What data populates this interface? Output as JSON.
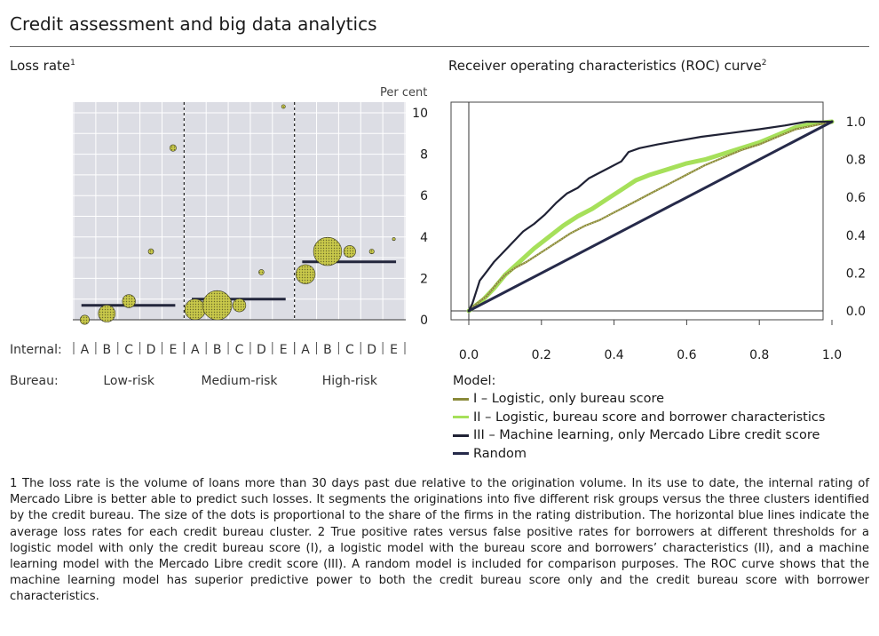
{
  "title": "Credit assessment and big data analytics",
  "colors": {
    "plot_background": "#dcdde4",
    "dots": "#c8c84a",
    "avg_line": "#23263c",
    "model_I": "#8a8a3a",
    "model_II": "#a6e05a",
    "model_III": "#202235",
    "random": "#262a4a"
  },
  "left_panel": {
    "title": "Loss rate",
    "title_note": "1",
    "unit": "Per cent",
    "internal_label": "Internal:",
    "bureau_label": "Bureau:"
  },
  "right_panel": {
    "title": "Receiver operating characteristics (ROC) curve",
    "title_note": "2"
  },
  "legend": {
    "title": "Model:",
    "items": [
      {
        "label": "I – Logistic, only bureau score",
        "color": "#8a8a3a"
      },
      {
        "label": "II – Logistic, bureau score and borrower characteristics",
        "color": "#a6e05a"
      },
      {
        "label": "III – Machine learning, only Mercado Libre credit score",
        "color": "#202235"
      },
      {
        "label": "Random",
        "color": "#262a4a"
      }
    ]
  },
  "chart_data": [
    {
      "type": "scatter",
      "title": "Loss rate",
      "ylabel": "Per cent",
      "ylim": [
        0,
        10
      ],
      "yticks": [
        0,
        2,
        4,
        6,
        8,
        10
      ],
      "grid": true,
      "groups": [
        {
          "bureau": "Low-risk",
          "average": 0.7,
          "points": [
            {
              "internal": "A",
              "value": 0.0,
              "share": 0.3
            },
            {
              "internal": "B",
              "value": 0.3,
              "share": 1.0
            },
            {
              "internal": "C",
              "value": 0.9,
              "share": 0.6
            },
            {
              "internal": "D",
              "value": 3.3,
              "share": 0.1
            },
            {
              "internal": "E",
              "value": 8.3,
              "share": 0.15
            }
          ]
        },
        {
          "bureau": "Medium-risk",
          "average": 1.0,
          "points": [
            {
              "internal": "A",
              "value": 0.5,
              "share": 1.5
            },
            {
              "internal": "B",
              "value": 0.7,
              "share": 3.0
            },
            {
              "internal": "C",
              "value": 0.7,
              "share": 0.6
            },
            {
              "internal": "D",
              "value": 2.3,
              "share": 0.1
            },
            {
              "internal": "E",
              "value": 10.3,
              "share": 0.05
            }
          ]
        },
        {
          "bureau": "High-risk",
          "average": 2.8,
          "points": [
            {
              "internal": "A",
              "value": 2.2,
              "share": 1.3
            },
            {
              "internal": "B",
              "value": 3.3,
              "share": 2.8
            },
            {
              "internal": "C",
              "value": 3.3,
              "share": 0.5
            },
            {
              "internal": "D",
              "value": 3.3,
              "share": 0.08
            },
            {
              "internal": "E",
              "value": 3.9,
              "share": 0.03
            }
          ]
        }
      ]
    },
    {
      "type": "line",
      "title": "Receiver operating characteristics (ROC) curve",
      "xlim": [
        0,
        1
      ],
      "ylim": [
        0,
        1
      ],
      "xticks": [
        0.0,
        0.2,
        0.4,
        0.6,
        0.8,
        1.0
      ],
      "yticks": [
        0.0,
        0.2,
        0.4,
        0.6,
        0.8,
        1.0
      ],
      "grid": false,
      "series": [
        {
          "name": "I – Logistic, only bureau score",
          "points": [
            [
              0,
              0
            ],
            [
              0.01,
              0.02
            ],
            [
              0.03,
              0.05
            ],
            [
              0.05,
              0.08
            ],
            [
              0.08,
              0.15
            ],
            [
              0.1,
              0.19
            ],
            [
              0.13,
              0.23
            ],
            [
              0.16,
              0.26
            ],
            [
              0.2,
              0.31
            ],
            [
              0.24,
              0.36
            ],
            [
              0.28,
              0.41
            ],
            [
              0.32,
              0.45
            ],
            [
              0.36,
              0.48
            ],
            [
              0.4,
              0.52
            ],
            [
              0.45,
              0.57
            ],
            [
              0.5,
              0.62
            ],
            [
              0.55,
              0.67
            ],
            [
              0.6,
              0.72
            ],
            [
              0.65,
              0.77
            ],
            [
              0.7,
              0.81
            ],
            [
              0.75,
              0.85
            ],
            [
              0.8,
              0.88
            ],
            [
              0.85,
              0.92
            ],
            [
              0.9,
              0.96
            ],
            [
              0.95,
              0.98
            ],
            [
              1,
              1
            ]
          ]
        },
        {
          "name": "II – Logistic, bureau score and borrower characteristics",
          "points": [
            [
              0,
              0
            ],
            [
              0.02,
              0.03
            ],
            [
              0.04,
              0.06
            ],
            [
              0.07,
              0.12
            ],
            [
              0.1,
              0.19
            ],
            [
              0.14,
              0.26
            ],
            [
              0.18,
              0.33
            ],
            [
              0.22,
              0.39
            ],
            [
              0.26,
              0.45
            ],
            [
              0.3,
              0.5
            ],
            [
              0.34,
              0.54
            ],
            [
              0.38,
              0.59
            ],
            [
              0.42,
              0.64
            ],
            [
              0.46,
              0.69
            ],
            [
              0.5,
              0.72
            ],
            [
              0.55,
              0.75
            ],
            [
              0.6,
              0.78
            ],
            [
              0.65,
              0.8
            ],
            [
              0.7,
              0.83
            ],
            [
              0.75,
              0.86
            ],
            [
              0.8,
              0.89
            ],
            [
              0.85,
              0.93
            ],
            [
              0.9,
              0.97
            ],
            [
              0.95,
              0.99
            ],
            [
              1,
              1
            ]
          ]
        },
        {
          "name": "III – Machine learning, only Mercado Libre credit score",
          "points": [
            [
              0,
              0
            ],
            [
              0.01,
              0.04
            ],
            [
              0.03,
              0.16
            ],
            [
              0.05,
              0.21
            ],
            [
              0.07,
              0.26
            ],
            [
              0.09,
              0.3
            ],
            [
              0.12,
              0.36
            ],
            [
              0.15,
              0.42
            ],
            [
              0.18,
              0.46
            ],
            [
              0.21,
              0.51
            ],
            [
              0.24,
              0.57
            ],
            [
              0.27,
              0.62
            ],
            [
              0.3,
              0.65
            ],
            [
              0.33,
              0.7
            ],
            [
              0.36,
              0.73
            ],
            [
              0.39,
              0.76
            ],
            [
              0.42,
              0.79
            ],
            [
              0.44,
              0.84
            ],
            [
              0.47,
              0.86
            ],
            [
              0.52,
              0.88
            ],
            [
              0.58,
              0.9
            ],
            [
              0.64,
              0.92
            ],
            [
              0.72,
              0.94
            ],
            [
              0.8,
              0.96
            ],
            [
              0.87,
              0.98
            ],
            [
              0.93,
              1.0
            ],
            [
              1,
              1
            ]
          ]
        },
        {
          "name": "Random",
          "points": [
            [
              0,
              0
            ],
            [
              1,
              1
            ]
          ]
        }
      ]
    }
  ],
  "footnote": "1  The loss rate is the volume of loans more than 30 days past due relative to the origination volume. In its use to date, the internal rating of Mercado Libre is better able to predict such losses. It segments the originations into five different risk groups versus the three clusters identified by the credit bureau. The size of the dots is proportional to the share of the firms in the rating distribution. The horizontal blue lines indicate the average loss rates for each credit bureau cluster.   2  True positive rates versus false positive rates for borrowers at different thresholds for a logistic model with only the credit bureau score (I), a logistic model with the bureau score and borrowers’ characteristics (II), and a machine learning model with the Mercado Libre credit score (III). A random model is included for comparison purposes. The ROC curve shows that the machine learning model has superior predictive power to both the credit bureau score only and the credit bureau score with borrower characteristics."
}
